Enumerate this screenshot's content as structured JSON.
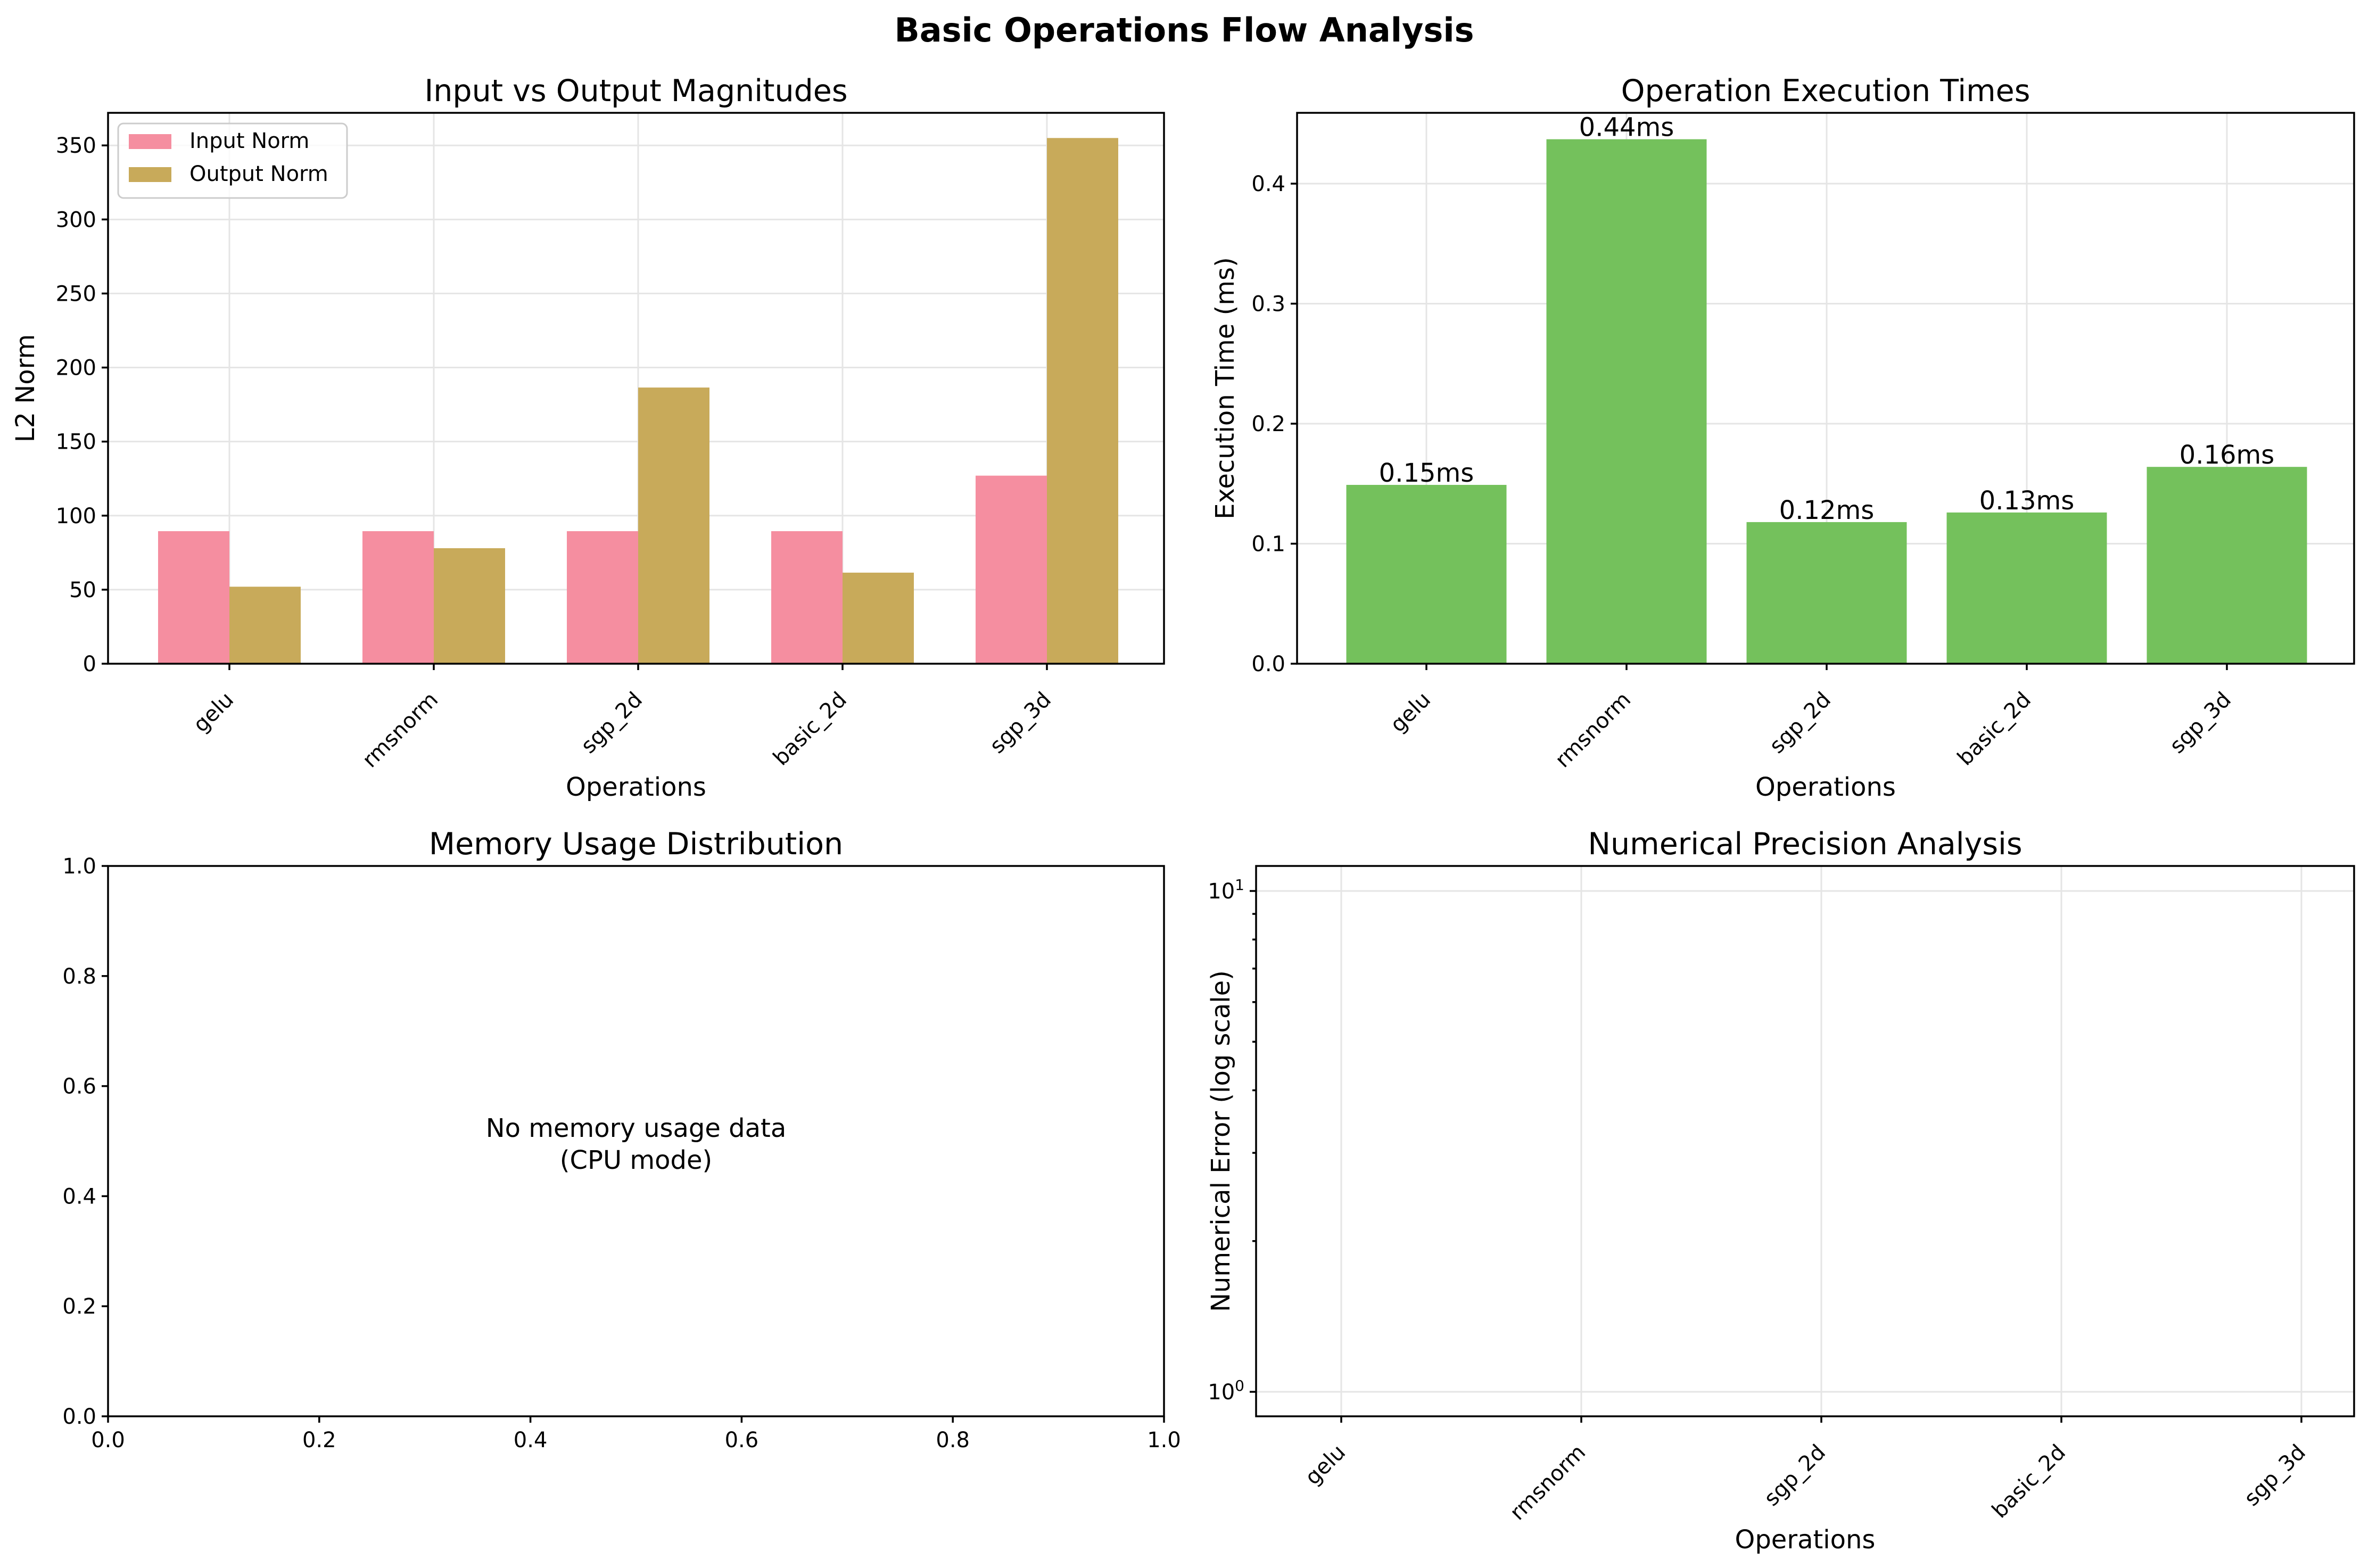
{
  "figure": {
    "title": "Basic Operations Flow Analysis"
  },
  "chart_data": [
    {
      "type": "bar",
      "title": "Input vs Output Magnitudes",
      "xlabel": "Operations",
      "ylabel": "L2 Norm",
      "categories": [
        "gelu",
        "rmsnorm",
        "sgp_2d",
        "basic_2d",
        "sgp_3d"
      ],
      "series": [
        {
          "name": "Input Norm",
          "color": "#f58ea0",
          "values": [
            89.5,
            89.5,
            89.5,
            89.5,
            127
          ]
        },
        {
          "name": "Output Norm",
          "color": "#c8aa5a",
          "values": [
            52,
            78,
            186.5,
            61.5,
            355
          ]
        }
      ],
      "ylim": [
        0,
        372
      ],
      "yticks": [
        0,
        50,
        100,
        150,
        200,
        250,
        300,
        350
      ],
      "grid": true,
      "legend": "upper-left"
    },
    {
      "type": "bar",
      "title": "Operation Execution Times",
      "xlabel": "Operations",
      "ylabel": "Execution Time (ms)",
      "categories": [
        "gelu",
        "rmsnorm",
        "sgp_2d",
        "basic_2d",
        "sgp_3d"
      ],
      "color": "#74c15c",
      "values": [
        0.149,
        0.437,
        0.118,
        0.126,
        0.164
      ],
      "data_labels": [
        "0.15ms",
        "0.44ms",
        "0.12ms",
        "0.13ms",
        "0.16ms"
      ],
      "ylim": [
        0,
        0.459
      ],
      "yticks": [
        "0.0",
        "0.1",
        "0.2",
        "0.3",
        "0.4"
      ],
      "grid": true
    },
    {
      "type": "empty",
      "title": "Memory Usage Distribution",
      "note_lines": [
        "No memory usage data",
        "(CPU mode)"
      ],
      "xlim": [
        0,
        1
      ],
      "ylim": [
        0,
        1
      ],
      "xticks": [
        "0.0",
        "0.2",
        "0.4",
        "0.6",
        "0.8",
        "1.0"
      ],
      "yticks": [
        "0.0",
        "0.2",
        "0.4",
        "0.6",
        "0.8",
        "1.0"
      ]
    },
    {
      "type": "scatter",
      "title": "Numerical Precision Analysis",
      "xlabel": "Operations",
      "ylabel": "Numerical Error (log scale)",
      "categories": [
        "gelu",
        "rmsnorm",
        "sgp_2d",
        "basic_2d",
        "sgp_3d"
      ],
      "yscale": "log",
      "ytick_values": [
        1,
        10
      ],
      "values": [],
      "grid": true
    }
  ]
}
